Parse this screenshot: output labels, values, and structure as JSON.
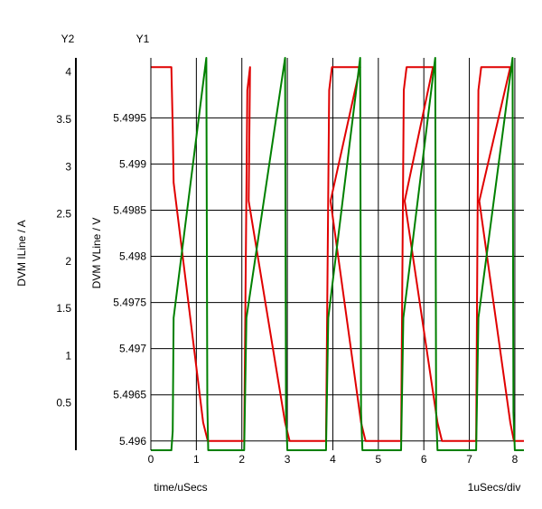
{
  "chart_data": {
    "type": "line",
    "x_axis": {
      "label": "time/uSecs",
      "scale_label": "1uSecs/div",
      "range": [
        0,
        8.2
      ],
      "ticks": [
        0,
        1,
        2,
        3,
        4,
        5,
        6,
        7,
        8
      ]
    },
    "y1_axis": {
      "title": "Y1",
      "label": "DVM VLine / V",
      "range": [
        5.4959,
        5.50015
      ],
      "ticks": [
        5.496,
        5.4965,
        5.497,
        5.4975,
        5.498,
        5.4985,
        5.499,
        5.4995
      ],
      "tick_labels": [
        "5.496",
        "5.4965",
        "5.497",
        "5.4975",
        "5.498",
        "5.4985",
        "5.499",
        "5.4995"
      ]
    },
    "y2_axis": {
      "title": "Y2",
      "label": "DVM ILine / A",
      "range": [
        0,
        4.15
      ],
      "ticks": [
        0.5,
        1,
        1.5,
        2,
        2.5,
        3,
        3.5,
        4
      ],
      "tick_labels": [
        "0.5",
        "1",
        "1.5",
        "2",
        "2.5",
        "3",
        "3.5",
        "4"
      ]
    },
    "grid": true,
    "series": [
      {
        "axis": "y1",
        "color": "#e00000",
        "points": [
          [
            0,
            5.50005
          ],
          [
            0.05,
            5.50005
          ],
          [
            0.45,
            5.50005
          ],
          [
            0.48,
            5.4994
          ],
          [
            0.5,
            5.4988
          ],
          [
            1.15,
            5.4962
          ],
          [
            1.25,
            5.496
          ],
          [
            2.0,
            5.496
          ],
          [
            2.05,
            5.496
          ],
          [
            2.12,
            5.4998
          ],
          [
            2.18,
            5.50005
          ],
          [
            2.15,
            5.4986
          ],
          [
            2.95,
            5.4962
          ],
          [
            3.05,
            5.496
          ],
          [
            3.8,
            5.496
          ],
          [
            3.85,
            5.496
          ],
          [
            3.92,
            5.4998
          ],
          [
            3.98,
            5.50005
          ],
          [
            4.6,
            5.50005
          ],
          [
            3.95,
            5.4986
          ],
          [
            4.62,
            5.4962
          ],
          [
            4.72,
            5.496
          ],
          [
            5.45,
            5.496
          ],
          [
            5.5,
            5.496
          ],
          [
            5.56,
            5.4998
          ],
          [
            5.62,
            5.50005
          ],
          [
            6.2,
            5.50005
          ],
          [
            5.58,
            5.4986
          ],
          [
            6.3,
            5.4962
          ],
          [
            6.4,
            5.496
          ],
          [
            7.1,
            5.496
          ],
          [
            7.15,
            5.496
          ],
          [
            7.2,
            5.4998
          ],
          [
            7.26,
            5.50005
          ],
          [
            7.9,
            5.50005
          ],
          [
            7.22,
            5.4986
          ],
          [
            7.9,
            5.4962
          ],
          [
            7.98,
            5.496
          ],
          [
            8.2,
            5.496
          ]
        ]
      },
      {
        "axis": "y2",
        "color": "#008000",
        "points": [
          [
            0,
            0
          ],
          [
            0.1,
            0
          ],
          [
            0.45,
            0
          ],
          [
            0.48,
            0.2
          ],
          [
            0.5,
            1.4
          ],
          [
            1.22,
            4.15
          ],
          [
            1.24,
            0.5
          ],
          [
            1.26,
            0
          ],
          [
            2.0,
            0
          ],
          [
            2.05,
            0
          ],
          [
            2.1,
            1.4
          ],
          [
            2.95,
            4.15
          ],
          [
            2.97,
            0.4
          ],
          [
            3.0,
            0
          ],
          [
            3.8,
            0
          ],
          [
            3.85,
            0
          ],
          [
            3.9,
            1.4
          ],
          [
            4.6,
            4.15
          ],
          [
            4.62,
            0.4
          ],
          [
            4.65,
            0
          ],
          [
            5.45,
            0
          ],
          [
            5.5,
            0
          ],
          [
            5.55,
            1.4
          ],
          [
            6.25,
            4.15
          ],
          [
            6.27,
            0.4
          ],
          [
            6.3,
            0
          ],
          [
            7.1,
            0
          ],
          [
            7.15,
            0
          ],
          [
            7.2,
            1.4
          ],
          [
            7.95,
            4.15
          ],
          [
            7.97,
            0.4
          ],
          [
            8.0,
            0
          ],
          [
            8.2,
            0
          ]
        ]
      }
    ]
  }
}
